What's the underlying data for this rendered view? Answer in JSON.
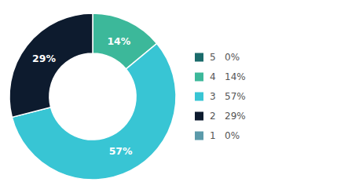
{
  "chart_data": {
    "type": "donut",
    "categories": [
      "5   0%",
      "4   14%",
      "3   57%",
      "2   29%",
      "1   0%"
    ],
    "values": [
      0,
      14,
      57,
      29,
      0
    ],
    "value_labels": [
      null,
      "14%",
      "57%",
      "29%",
      null
    ],
    "data_labels": true,
    "colors": [
      "#1a6b6b",
      "#3cb89a",
      "#38c5d4",
      "#0d1b2e",
      "#5b9aaa"
    ],
    "legend": "right"
  }
}
